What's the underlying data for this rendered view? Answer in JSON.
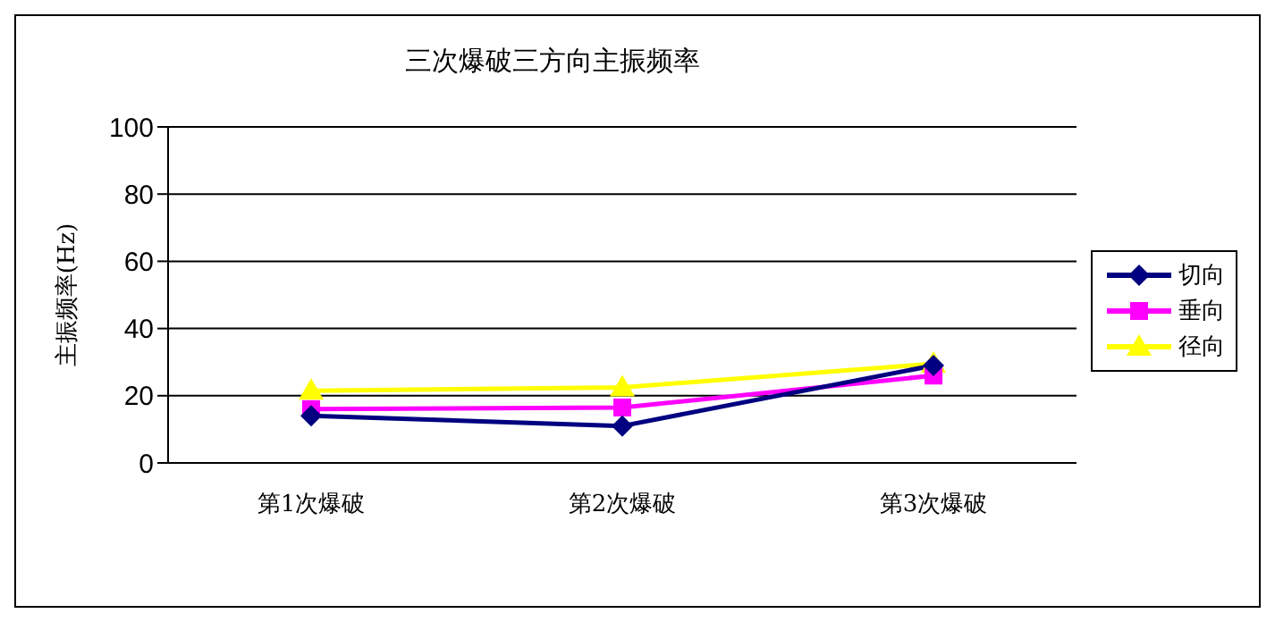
{
  "chart_data": {
    "type": "line",
    "title": "三次爆破三方向主振频率",
    "ylabel": "主振频率(Hz)",
    "categories": [
      "第1次爆破",
      "第2次爆破",
      "第3次爆破"
    ],
    "series": [
      {
        "name": "切向",
        "color": "#000080",
        "marker": "diamond",
        "values": [
          14,
          11,
          29
        ]
      },
      {
        "name": "垂向",
        "color": "#ff00ff",
        "marker": "square",
        "values": [
          16,
          16.5,
          26
        ]
      },
      {
        "name": "径向",
        "color": "#ffff00",
        "marker": "triangle",
        "values": [
          21.5,
          22.5,
          29.5
        ]
      }
    ],
    "ylim": [
      0,
      100
    ],
    "yticks": [
      0,
      20,
      40,
      60,
      80,
      100
    ],
    "grid": "y",
    "legend": "right"
  }
}
